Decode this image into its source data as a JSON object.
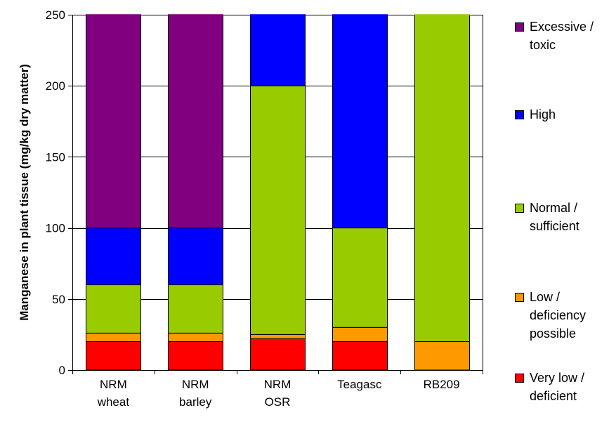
{
  "chart_data": {
    "type": "bar",
    "stacked": true,
    "ylabel": "Manganese in plant tissue (mg/kg dry matter)",
    "xlabel": "",
    "ylim": [
      0,
      250
    ],
    "yticks": [
      0,
      50,
      100,
      150,
      200,
      250
    ],
    "grid": true,
    "legend_position": "right",
    "categories": [
      "NRM\nwheat",
      "NRM\nbarley",
      "NRM\nOSR",
      "Teagasc",
      "RB209"
    ],
    "series": [
      {
        "name": "Very low /\ndeficient",
        "color": "#ff0000",
        "values": [
          20,
          20,
          22,
          20,
          0
        ]
      },
      {
        "name": "Low /\ndeficiency\npossible",
        "color": "#ff9900",
        "values": [
          6,
          6,
          3,
          10,
          20
        ]
      },
      {
        "name": "Normal /\nsufficient",
        "color": "#99cc00",
        "values": [
          34,
          34,
          175,
          70,
          230
        ]
      },
      {
        "name": "High",
        "color": "#0000ff",
        "values": [
          40,
          40,
          50,
          150,
          0
        ]
      },
      {
        "name": "Excessive /\ntoxic",
        "color": "#800080",
        "values": [
          150,
          150,
          0,
          0,
          0
        ]
      }
    ]
  }
}
